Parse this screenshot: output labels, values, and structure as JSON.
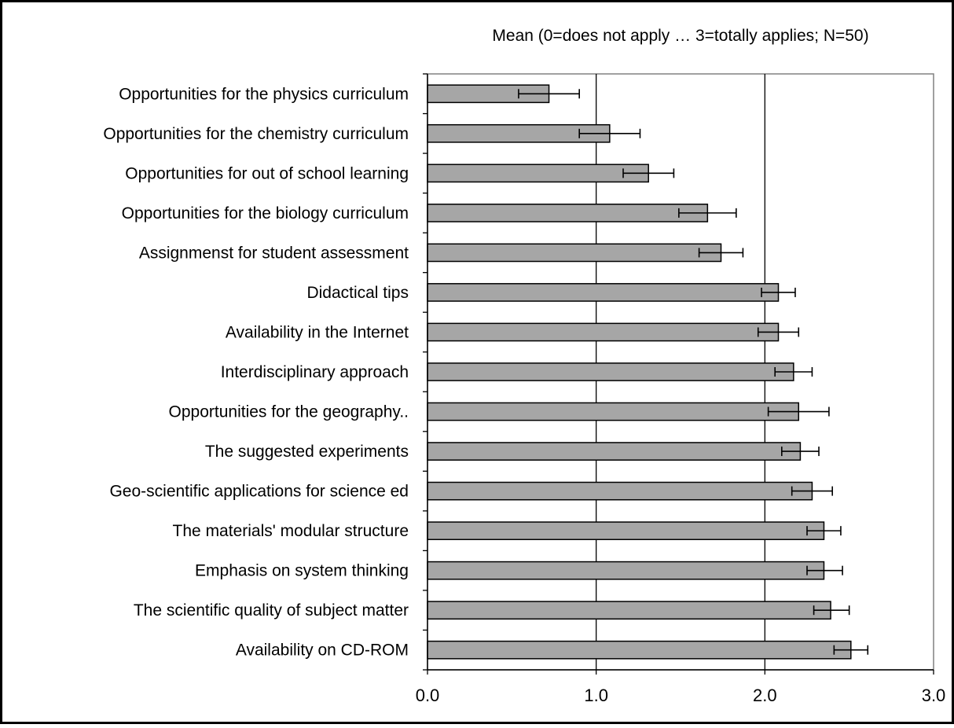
{
  "chart_data": {
    "type": "bar",
    "orientation": "horizontal",
    "title": "Mean (0=does not apply … 3=totally applies; N=50)",
    "xlim": [
      0,
      3
    ],
    "x_ticks": [
      "0.0",
      "1.0",
      "2.0",
      "3.0"
    ],
    "x_tick_values": [
      0,
      1,
      2,
      3
    ],
    "grid": "vertical major gridlines",
    "legend": "none",
    "error_bars": true,
    "categories": [
      "Opportunities for the physics curriculum",
      "Opportunities for the chemistry curriculum",
      "Opportunities for out of school learning",
      "Opportunities for the biology curriculum",
      "Assignmenst for student assessment",
      "Didactical tips",
      "Availability in the Internet",
      "Interdisciplinary approach",
      "Opportunities for the geography..",
      "The suggested experiments",
      "Geo-scientific applications for science ed",
      "The materials' modular structure",
      "Emphasis on system thinking",
      "The scientific quality of subject matter",
      "Availability on CD-ROM"
    ],
    "values": [
      0.72,
      1.08,
      1.31,
      1.66,
      1.74,
      2.08,
      2.08,
      2.17,
      2.2,
      2.21,
      2.28,
      2.35,
      2.35,
      2.39,
      2.51
    ],
    "error_low": [
      0.54,
      0.9,
      1.16,
      1.49,
      1.61,
      1.98,
      1.96,
      2.06,
      2.02,
      2.1,
      2.16,
      2.25,
      2.25,
      2.29,
      2.41
    ],
    "error_high": [
      0.9,
      1.26,
      1.46,
      1.83,
      1.87,
      2.18,
      2.2,
      2.28,
      2.38,
      2.32,
      2.4,
      2.45,
      2.46,
      2.5,
      2.61
    ],
    "bar_color": "#a6a6a6",
    "bar_outline_color": "#000000",
    "gridline_color": "#000000"
  }
}
